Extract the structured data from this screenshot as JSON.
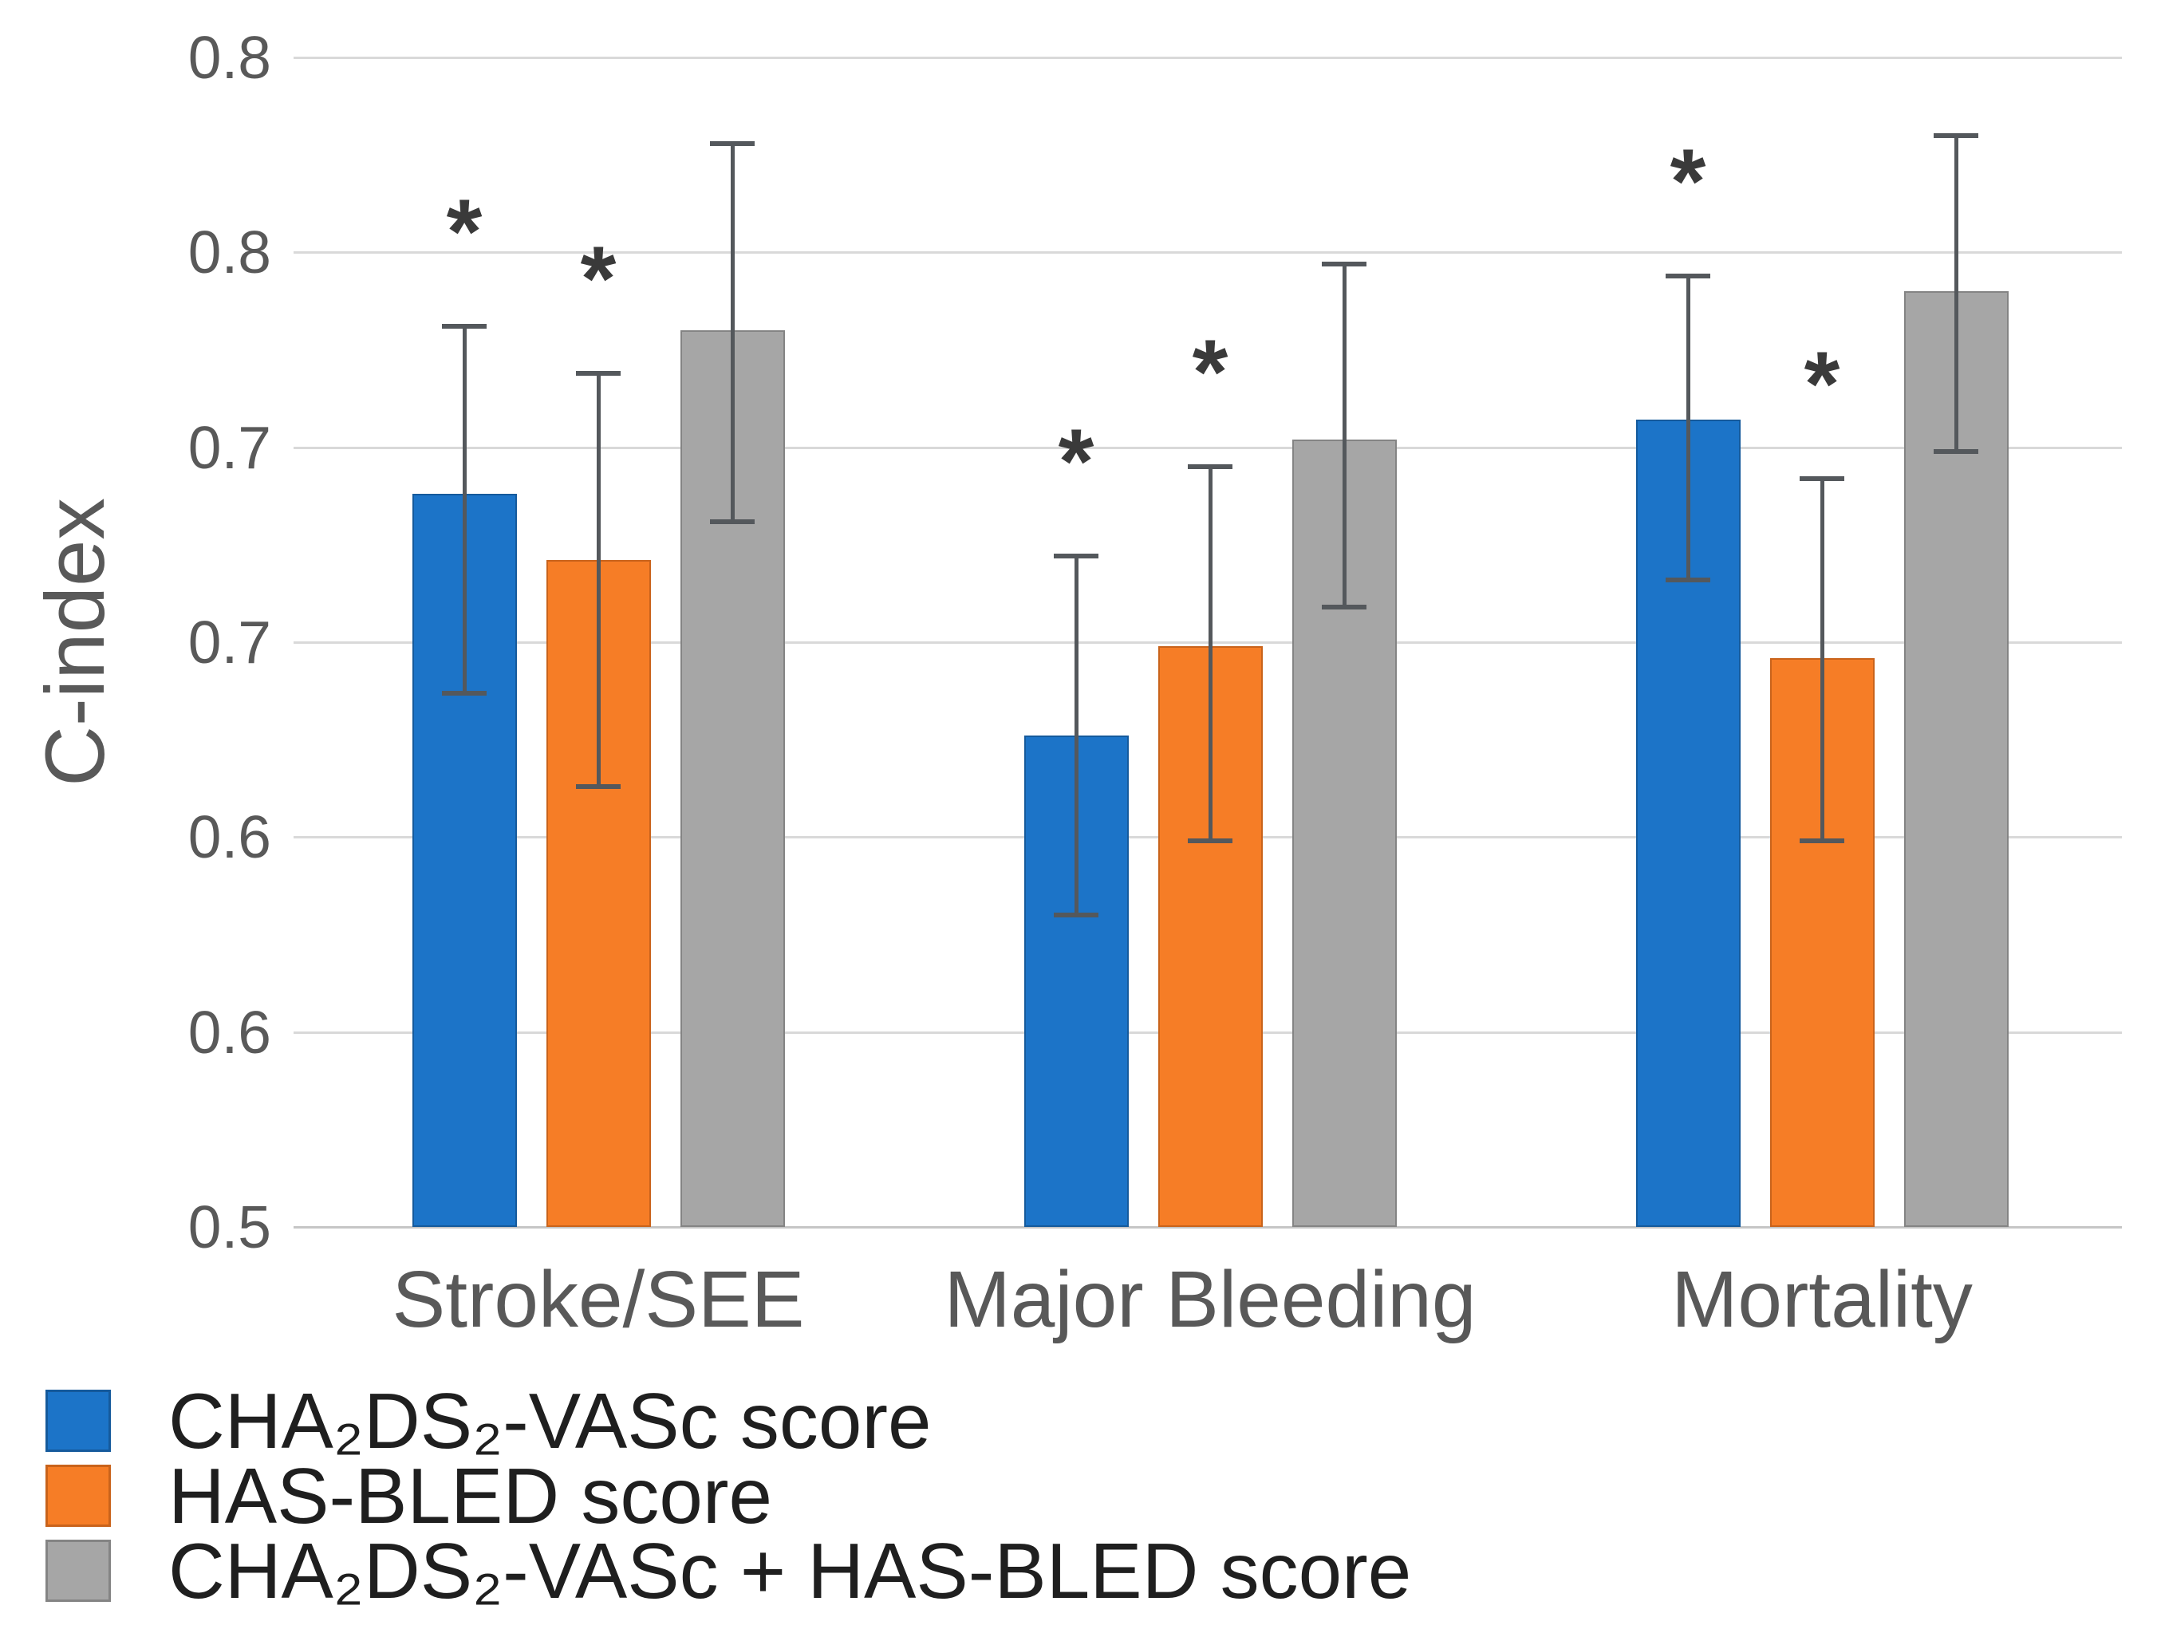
{
  "figure": {
    "background": "#FFFFFF",
    "significance_marker": "*"
  },
  "y_axis": {
    "label": "C-index",
    "min": 0.5,
    "max": 0.8,
    "tick_step": 0.05,
    "tick_label_format": "one-decimal (rounded)",
    "ticks": [
      {
        "label": "0.8",
        "value": 0.8
      },
      {
        "label": "0.8",
        "value": 0.75
      },
      {
        "label": "0.7",
        "value": 0.7
      },
      {
        "label": "0.7",
        "value": 0.65
      },
      {
        "label": "0.6",
        "value": 0.6
      },
      {
        "label": "0.6",
        "value": 0.55
      },
      {
        "label": "0.5",
        "value": 0.5
      }
    ]
  },
  "chart_data": {
    "type": "bar",
    "title": "",
    "xlabel": "",
    "ylabel": "C-index",
    "ylim": [
      0.5,
      0.8
    ],
    "grid": true,
    "error_bars": true,
    "legend_position": "bottom-left",
    "categories": [
      "Stroke/SEE",
      "Major Bleeding",
      "Mortality"
    ],
    "series": [
      {
        "name": "CHA₂DS₂-VASc score",
        "color": "#1C74C8",
        "border_color": "#155A9C",
        "values": [
          0.688,
          0.626,
          0.707
        ],
        "ci_low": [
          0.637,
          0.58,
          0.666
        ],
        "ci_high": [
          0.731,
          0.672,
          0.744
        ],
        "significant": [
          true,
          true,
          true
        ]
      },
      {
        "name": "HAS-BLED score",
        "color": "#F67D26",
        "border_color": "#C9631B",
        "values": [
          0.671,
          0.649,
          0.646
        ],
        "ci_low": [
          0.613,
          0.599,
          0.599
        ],
        "ci_high": [
          0.719,
          0.695,
          0.692
        ],
        "significant": [
          true,
          true,
          true
        ]
      },
      {
        "name": "CHA₂DS₂-VASc + HAS-BLED score",
        "color": "#A6A6A6",
        "border_color": "#848484",
        "values": [
          0.73,
          0.702,
          0.74
        ],
        "ci_low": [
          0.681,
          0.659,
          0.699
        ],
        "ci_high": [
          0.778,
          0.747,
          0.78
        ],
        "significant": [
          false,
          false,
          false
        ]
      }
    ]
  },
  "legend": {
    "items": [
      {
        "label": "CHA₂DS₂-VASc score",
        "color": "#1C74C8"
      },
      {
        "label": "HAS-BLED score",
        "color": "#F67D26"
      },
      {
        "label": "CHA₂DS₂-VASc + HAS-BLED score",
        "color": "#A6A6A6"
      }
    ]
  }
}
